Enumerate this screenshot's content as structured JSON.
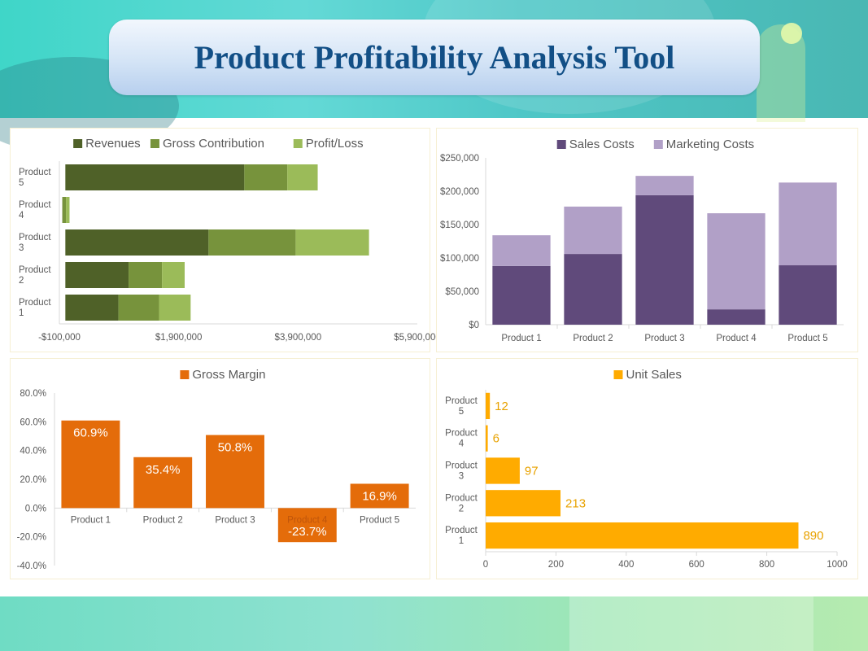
{
  "page_title": "Product Profitability Analysis Tool",
  "chart_data": [
    {
      "id": "revenue-chart",
      "type": "bar",
      "orientation": "horizontal",
      "stacked": true,
      "categories": [
        "Product 1",
        "Product 2",
        "Product 3",
        "Product 4",
        "Product 5"
      ],
      "category_labels": [
        [
          "Product",
          "1"
        ],
        [
          "Product",
          "2"
        ],
        [
          "Product",
          "3"
        ],
        [
          "Product",
          "4"
        ],
        [
          "Product",
          "5"
        ]
      ],
      "series": [
        {
          "name": "Revenues",
          "color": "#4f6128",
          "values": [
            890000,
            1060000,
            2400000,
            -50000,
            3000000
          ]
        },
        {
          "name": "Gross Contribution",
          "color": "#77933c",
          "values": [
            680000,
            560000,
            1460000,
            60000,
            720000
          ]
        },
        {
          "name": "Profit/Loss",
          "color": "#9bbb59",
          "values": [
            530000,
            380000,
            1230000,
            60000,
            510000
          ]
        }
      ],
      "xlim": [
        -100000,
        5900000
      ],
      "xticks": [
        -100000,
        1900000,
        3900000,
        5900000
      ],
      "xtick_labels": [
        "-$100,000",
        "$1,900,000",
        "$3,900,000",
        "$5,900,000"
      ],
      "legend": "top",
      "grid": false
    },
    {
      "id": "cost-chart",
      "type": "bar",
      "orientation": "vertical",
      "stacked": true,
      "categories": [
        "Product 1",
        "Product 2",
        "Product 3",
        "Product 4",
        "Product 5"
      ],
      "series": [
        {
          "name": "Sales Costs",
          "color": "#604a7b",
          "values": [
            88000,
            106000,
            194000,
            23000,
            89000
          ]
        },
        {
          "name": "Marketing Costs",
          "color": "#b1a0c7",
          "values": [
            46000,
            71000,
            29000,
            144000,
            124000
          ]
        }
      ],
      "ylim": [
        0,
        250000
      ],
      "yticks": [
        0,
        50000,
        100000,
        150000,
        200000,
        250000
      ],
      "ytick_labels": [
        "$0",
        "$50,000",
        "$100,000",
        "$150,000",
        "$200,000",
        "$250,000"
      ],
      "legend": "top",
      "grid": false
    },
    {
      "id": "margin-chart",
      "type": "bar",
      "orientation": "vertical",
      "categories": [
        "Product 1",
        "Product 2",
        "Product 3",
        "Product 4",
        "Product 5"
      ],
      "series": [
        {
          "name": "Gross Margin",
          "color": "#e46c0a",
          "values": [
            60.9,
            35.4,
            50.8,
            -23.7,
            16.9
          ]
        }
      ],
      "data_labels": [
        "60.9%",
        "35.4%",
        "50.8%",
        "-23.7%",
        "16.9%"
      ],
      "ylim": [
        -40,
        80
      ],
      "yticks": [
        -40,
        -20,
        0,
        20,
        40,
        60,
        80
      ],
      "ytick_labels": [
        "-40.0%",
        "-20.0%",
        "0.0%",
        "20.0%",
        "40.0%",
        "60.0%",
        "80.0%"
      ],
      "legend": "top",
      "grid": false
    },
    {
      "id": "units-chart",
      "type": "bar",
      "orientation": "horizontal",
      "categories": [
        "Product 1",
        "Product 2",
        "Product 3",
        "Product 4",
        "Product 5"
      ],
      "category_labels": [
        [
          "Product",
          "1"
        ],
        [
          "Product",
          "2"
        ],
        [
          "Product",
          "3"
        ],
        [
          "Product",
          "4"
        ],
        [
          "Product",
          "5"
        ]
      ],
      "series": [
        {
          "name": "Unit Sales",
          "color": "#ffab00",
          "values": [
            890,
            213,
            97,
            6,
            12
          ]
        }
      ],
      "data_labels": [
        "890",
        "213",
        "97",
        "6",
        "12"
      ],
      "xlim": [
        0,
        1000
      ],
      "xticks": [
        0,
        200,
        400,
        600,
        800,
        1000
      ],
      "xtick_labels": [
        "0",
        "200",
        "400",
        "600",
        "800",
        "1000"
      ],
      "legend": "top",
      "grid": false
    }
  ]
}
